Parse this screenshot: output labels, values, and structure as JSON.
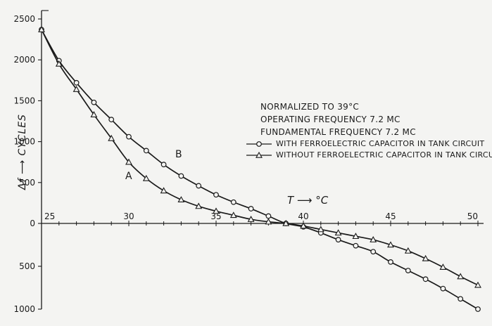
{
  "chart_data": {
    "type": "line",
    "x_axis": {
      "label": "T ⟶ °C",
      "range": [
        25,
        50
      ],
      "ticks": [
        25,
        30,
        35,
        40,
        45,
        50
      ],
      "tick_labels": [
        "25",
        "30",
        "35",
        "40",
        "45",
        "50"
      ]
    },
    "y_axis": {
      "label": "Δf ⟶ CYCLES",
      "range": [
        -1000,
        2500
      ],
      "ticks": [
        2500,
        2000,
        1500,
        1000,
        500,
        0,
        -500,
        -1000
      ],
      "tick_labels": [
        "2500",
        "2000",
        "1500",
        "1000",
        "500",
        "0",
        "500",
        "1000"
      ]
    },
    "annotations": [
      "NORMALIZED TO 39°C",
      "OPERATING FREQUENCY 7.2 MC",
      "FUNDAMENTAL FREQUENCY 7.2 MC"
    ],
    "series": [
      {
        "name": "WITH FERROELECTRIC CAPACITOR IN TANK CIRCUIT",
        "curve_label": "B",
        "marker": "circle",
        "x": [
          25,
          26,
          27,
          28,
          29,
          30,
          31,
          32,
          33,
          34,
          35,
          36,
          37,
          38,
          39,
          40,
          41,
          42,
          43,
          44,
          45,
          46,
          47,
          48,
          49,
          50
        ],
        "y": [
          2370,
          1990,
          1720,
          1480,
          1270,
          1060,
          890,
          720,
          580,
          460,
          350,
          260,
          180,
          90,
          0,
          -40,
          -110,
          -190,
          -260,
          -330,
          -450,
          -550,
          -650,
          -760,
          -880,
          -1000
        ]
      },
      {
        "name": "WITHOUT FERROELECTRIC CAPACITOR IN TANK CIRCUIT",
        "curve_label": "A",
        "marker": "triangle",
        "x": [
          25,
          26,
          27,
          28,
          29,
          30,
          31,
          32,
          33,
          34,
          35,
          36,
          37,
          38,
          39,
          40,
          41,
          42,
          43,
          44,
          45,
          46,
          47,
          48,
          49,
          50
        ],
        "y": [
          2370,
          1950,
          1640,
          1330,
          1040,
          750,
          550,
          400,
          290,
          210,
          150,
          100,
          50,
          20,
          0,
          -30,
          -70,
          -110,
          -150,
          -190,
          -250,
          -320,
          -410,
          -510,
          -620,
          -720
        ]
      }
    ],
    "grid": false,
    "legend_position": "right"
  }
}
